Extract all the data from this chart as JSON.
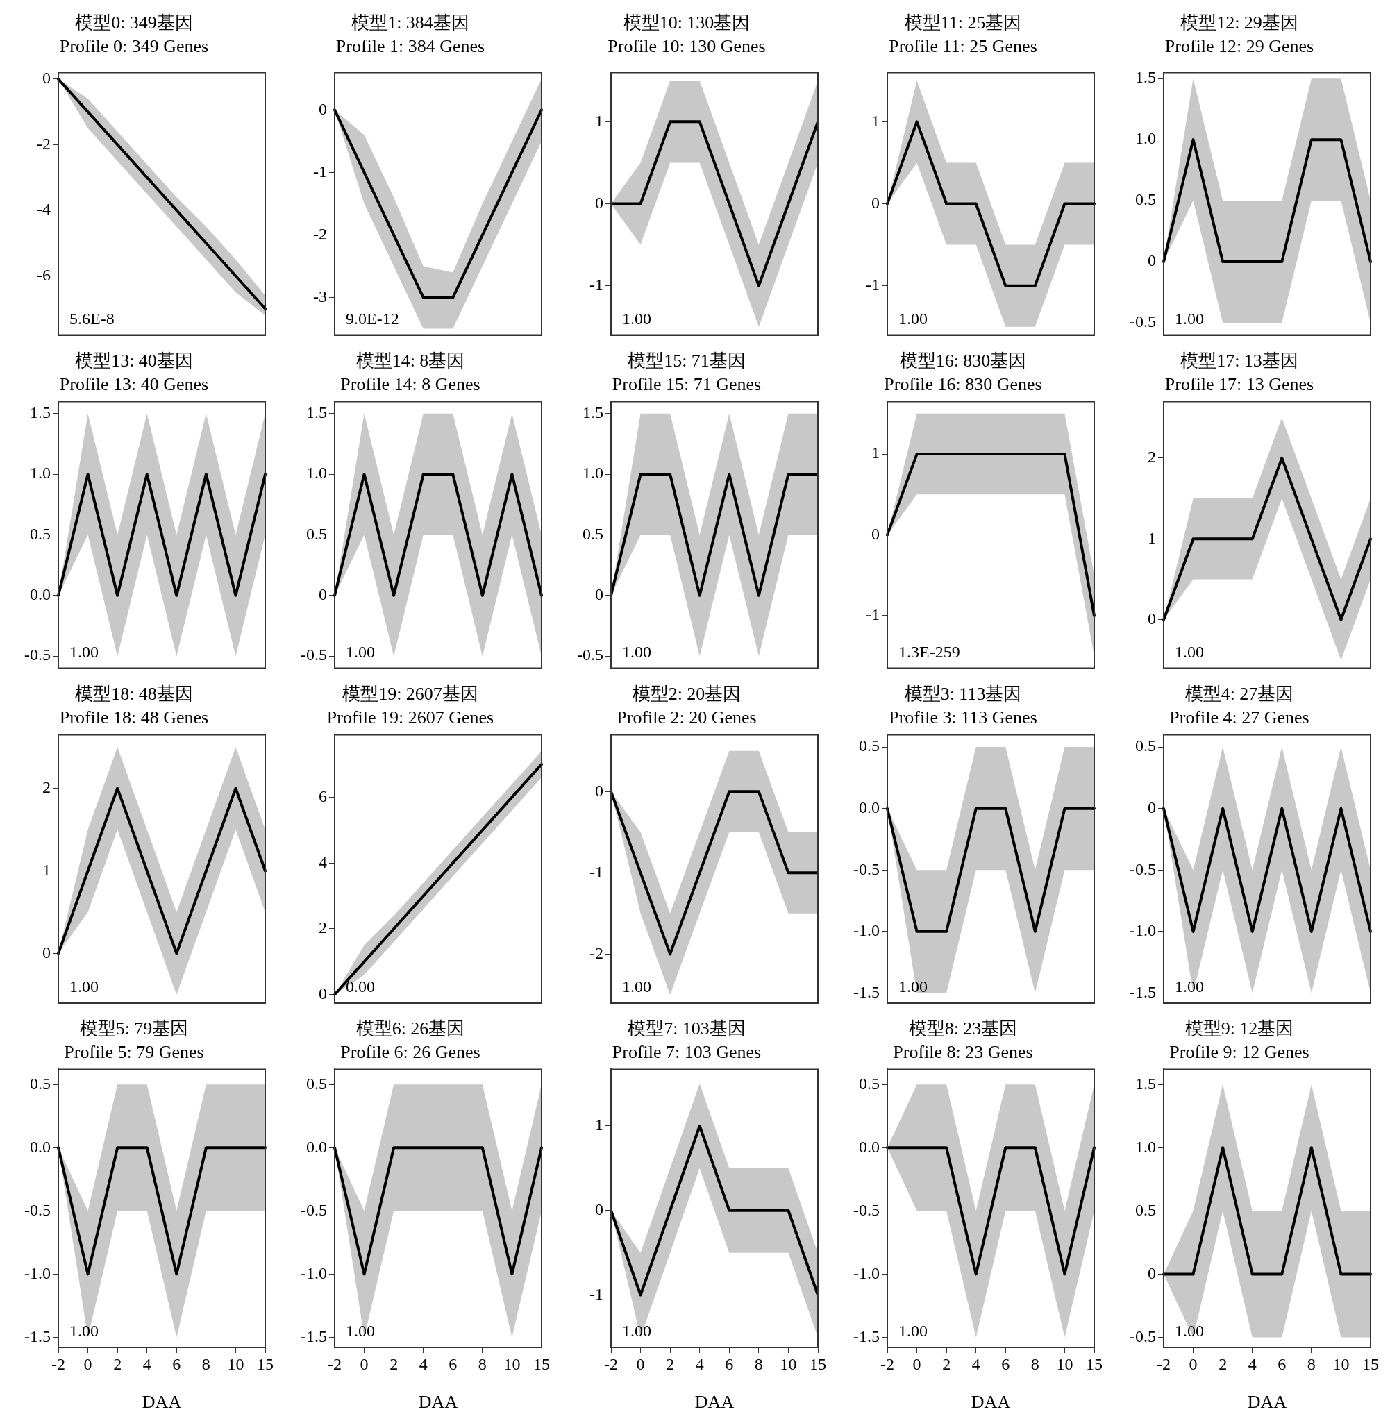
{
  "chart_data": [
    {
      "type": "line",
      "title": "模型0: 349基因",
      "subtitle": "Profile 0: 349 Genes",
      "categories": [
        "-2",
        "0",
        "2",
        "4",
        "6",
        "8",
        "10",
        "15"
      ],
      "series": [
        {
          "color": "#000000",
          "values": [
            0,
            -1,
            -2,
            -3,
            -4,
            -5,
            -6,
            -7
          ],
          "lower": [
            0,
            -1.5,
            -2.5,
            -3.5,
            -4.5,
            -5.5,
            -6.5,
            -7.2
          ],
          "upper": [
            0,
            -0.6,
            -1.6,
            -2.6,
            -3.6,
            -4.5,
            -5.5,
            -6.6
          ]
        }
      ],
      "ylim": [
        -7.8,
        0.2
      ],
      "yticks": [
        -6,
        -4,
        -2,
        0
      ],
      "tick_labels": "y",
      "marker": "none",
      "line_style": "solid",
      "legend": false,
      "annotations": [
        "5.6E-8"
      ]
    },
    {
      "type": "line",
      "title": "模型1: 384基因",
      "subtitle": "Profile 1: 384 Genes",
      "categories": [
        "-2",
        "0",
        "2",
        "4",
        "6",
        "8",
        "10",
        "15"
      ],
      "series": [
        {
          "color": "#000000",
          "values": [
            0,
            -1,
            -2,
            -3,
            -3,
            -2,
            -1,
            0
          ],
          "lower": [
            0,
            -1.5,
            -2.5,
            -3.5,
            -3.5,
            -2.5,
            -1.5,
            -0.5
          ],
          "upper": [
            0,
            -0.4,
            -1.4,
            -2.5,
            -2.6,
            -1.5,
            -0.5,
            0.5
          ]
        }
      ],
      "ylim": [
        -3.6,
        0.6
      ],
      "yticks": [
        -3,
        -2,
        -1,
        0
      ],
      "tick_labels": "y",
      "marker": "none",
      "line_style": "solid",
      "legend": false,
      "annotations": [
        "9.0E-12"
      ]
    },
    {
      "type": "line",
      "title": "模型10: 130基因",
      "subtitle": "Profile 10: 130 Genes",
      "categories": [
        "-2",
        "0",
        "2",
        "4",
        "6",
        "8",
        "10",
        "15"
      ],
      "series": [
        {
          "color": "#000000",
          "values": [
            0,
            0,
            1,
            1,
            0,
            -1,
            0,
            1
          ],
          "lower": [
            0,
            -0.5,
            0.5,
            0.5,
            -0.5,
            -1.5,
            -0.5,
            0.5
          ],
          "upper": [
            0,
            0.5,
            1.5,
            1.5,
            0.5,
            -0.5,
            0.5,
            1.5
          ]
        }
      ],
      "ylim": [
        -1.6,
        1.6
      ],
      "yticks": [
        -1,
        0,
        1
      ],
      "tick_labels": "y",
      "marker": "none",
      "line_style": "solid",
      "legend": false,
      "annotations": [
        "1.00"
      ]
    },
    {
      "type": "line",
      "title": "模型11: 25基因",
      "subtitle": "Profile 11: 25 Genes",
      "categories": [
        "-2",
        "0",
        "2",
        "4",
        "6",
        "8",
        "10",
        "15"
      ],
      "series": [
        {
          "color": "#000000",
          "values": [
            0,
            1,
            0,
            0,
            -1,
            -1,
            0,
            0
          ],
          "lower": [
            0,
            0.5,
            -0.5,
            -0.5,
            -1.5,
            -1.5,
            -0.5,
            -0.5
          ],
          "upper": [
            0,
            1.5,
            0.5,
            0.5,
            -0.5,
            -0.5,
            0.5,
            0.5
          ]
        }
      ],
      "ylim": [
        -1.6,
        1.6
      ],
      "yticks": [
        -1,
        0,
        1
      ],
      "tick_labels": "y",
      "marker": "none",
      "line_style": "solid",
      "legend": false,
      "annotations": [
        "1.00"
      ]
    },
    {
      "type": "line",
      "title": "模型12: 29基因",
      "subtitle": "Profile 12: 29 Genes",
      "categories": [
        "-2",
        "0",
        "2",
        "4",
        "6",
        "8",
        "10",
        "15"
      ],
      "series": [
        {
          "color": "#000000",
          "values": [
            0,
            1,
            0,
            0,
            0,
            1,
            1,
            0
          ],
          "lower": [
            0,
            0.5,
            -0.5,
            -0.5,
            -0.5,
            0.5,
            0.5,
            -0.5
          ],
          "upper": [
            0,
            1.5,
            0.5,
            0.5,
            0.5,
            1.5,
            1.5,
            0.5
          ]
        }
      ],
      "ylim": [
        -0.6,
        1.55
      ],
      "yticks": [
        -0.5,
        0,
        0.5,
        {
          "value": 1,
          "label": "1.0"
        },
        1.5
      ],
      "tick_labels": "y",
      "marker": "none",
      "line_style": "solid",
      "legend": false,
      "annotations": [
        "1.00"
      ]
    },
    {
      "type": "line",
      "title": "模型13: 40基因",
      "subtitle": "Profile 13: 40 Genes",
      "categories": [
        "-2",
        "0",
        "2",
        "4",
        "6",
        "8",
        "10",
        "15"
      ],
      "series": [
        {
          "color": "#000000",
          "values": [
            0,
            1,
            0,
            1,
            0,
            1,
            0,
            1
          ],
          "lower": [
            0,
            0.5,
            -0.5,
            0.5,
            -0.5,
            0.5,
            -0.5,
            0.5
          ],
          "upper": [
            0,
            1.5,
            0.5,
            1.5,
            0.5,
            1.5,
            0.5,
            1.5
          ]
        }
      ],
      "ylim": [
        -0.6,
        1.6
      ],
      "yticks": [
        -0.5,
        {
          "value": 0,
          "label": "0.0"
        },
        0.5,
        {
          "value": 1,
          "label": "1.0"
        },
        1.5
      ],
      "tick_labels": "y",
      "marker": "none",
      "line_style": "solid",
      "legend": false,
      "annotations": [
        "1.00"
      ]
    },
    {
      "type": "line",
      "title": "模型14: 8基因",
      "subtitle": "Profile 14: 8 Genes",
      "categories": [
        "-2",
        "0",
        "2",
        "4",
        "6",
        "8",
        "10",
        "15"
      ],
      "series": [
        {
          "color": "#000000",
          "values": [
            0,
            1,
            0,
            1,
            1,
            0,
            1,
            0
          ],
          "lower": [
            0,
            0.5,
            -0.5,
            0.5,
            0.5,
            -0.5,
            0.5,
            -0.5
          ],
          "upper": [
            0,
            1.5,
            0.5,
            1.5,
            1.5,
            0.5,
            1.5,
            0.5
          ]
        }
      ],
      "ylim": [
        -0.6,
        1.6
      ],
      "yticks": [
        -0.5,
        0,
        0.5,
        {
          "value": 1,
          "label": "1.0"
        },
        1.5
      ],
      "tick_labels": "y",
      "marker": "none",
      "line_style": "solid",
      "legend": false,
      "annotations": [
        "1.00"
      ]
    },
    {
      "type": "line",
      "title": "模型15: 71基因",
      "subtitle": "Profile 15: 71 Genes",
      "categories": [
        "-2",
        "0",
        "2",
        "4",
        "6",
        "8",
        "10",
        "15"
      ],
      "series": [
        {
          "color": "#000000",
          "values": [
            0,
            1,
            1,
            0,
            1,
            0,
            1,
            1
          ],
          "lower": [
            0,
            0.5,
            0.5,
            -0.5,
            0.5,
            -0.5,
            0.5,
            0.5
          ],
          "upper": [
            0,
            1.5,
            1.5,
            0.5,
            1.5,
            0.5,
            1.5,
            1.5
          ]
        }
      ],
      "ylim": [
        -0.6,
        1.6
      ],
      "yticks": [
        -0.5,
        0,
        0.5,
        {
          "value": 1,
          "label": "1.0"
        },
        1.5
      ],
      "tick_labels": "y",
      "marker": "none",
      "line_style": "solid",
      "legend": false,
      "annotations": [
        "1.00"
      ]
    },
    {
      "type": "line",
      "title": "模型16: 830基因",
      "subtitle": "Profile 16: 830 Genes",
      "categories": [
        "-2",
        "0",
        "2",
        "4",
        "6",
        "8",
        "10",
        "15"
      ],
      "series": [
        {
          "color": "#000000",
          "values": [
            0,
            1,
            1,
            1,
            1,
            1,
            1,
            -1
          ],
          "lower": [
            0,
            0.5,
            0.5,
            0.5,
            0.5,
            0.5,
            0.5,
            -1.5
          ],
          "upper": [
            0,
            1.5,
            1.5,
            1.5,
            1.5,
            1.5,
            1.5,
            -0.5
          ]
        }
      ],
      "ylim": [
        -1.65,
        1.65
      ],
      "yticks": [
        -1,
        0,
        1
      ],
      "tick_labels": "y",
      "marker": "none",
      "line_style": "solid",
      "legend": false,
      "annotations": [
        "1.3E-259"
      ]
    },
    {
      "type": "line",
      "title": "模型17: 13基因",
      "subtitle": "Profile 17: 13 Genes",
      "categories": [
        "-2",
        "0",
        "2",
        "4",
        "6",
        "8",
        "10",
        "15"
      ],
      "series": [
        {
          "color": "#000000",
          "values": [
            0,
            1,
            1,
            1,
            2,
            1,
            0,
            1
          ],
          "lower": [
            0,
            0.5,
            0.5,
            0.5,
            1.5,
            0.5,
            -0.5,
            0.5
          ],
          "upper": [
            0,
            1.5,
            1.5,
            1.5,
            2.5,
            1.5,
            0.5,
            1.5
          ]
        }
      ],
      "ylim": [
        -0.6,
        2.7
      ],
      "yticks": [
        0,
        1,
        2
      ],
      "tick_labels": "y",
      "marker": "none",
      "line_style": "solid",
      "legend": false,
      "annotations": [
        "1.00"
      ]
    },
    {
      "type": "line",
      "title": "模型18: 48基因",
      "subtitle": "Profile 18: 48 Genes",
      "categories": [
        "-2",
        "0",
        "2",
        "4",
        "6",
        "8",
        "10",
        "15"
      ],
      "series": [
        {
          "color": "#000000",
          "values": [
            0,
            1,
            2,
            1,
            0,
            1,
            2,
            1
          ],
          "lower": [
            0,
            0.5,
            1.5,
            0.5,
            -0.5,
            0.5,
            1.5,
            0.5
          ],
          "upper": [
            0,
            1.5,
            2.5,
            1.5,
            0.5,
            1.5,
            2.5,
            1.5
          ]
        }
      ],
      "ylim": [
        -0.6,
        2.65
      ],
      "yticks": [
        0,
        1,
        2
      ],
      "tick_labels": "y",
      "marker": "none",
      "line_style": "solid",
      "legend": false,
      "annotations": [
        "1.00"
      ]
    },
    {
      "type": "line",
      "title": "模型19: 2607基因",
      "subtitle": "Profile 19: 2607 Genes",
      "categories": [
        "-2",
        "0",
        "2",
        "4",
        "6",
        "8",
        "10",
        "15"
      ],
      "series": [
        {
          "color": "#000000",
          "values": [
            0,
            1,
            2,
            3,
            4,
            5,
            6,
            7
          ],
          "lower": [
            0,
            0.6,
            1.6,
            2.6,
            3.6,
            4.6,
            5.6,
            6.6
          ],
          "upper": [
            0,
            1.5,
            2.4,
            3.4,
            4.4,
            5.4,
            6.4,
            7.4
          ]
        }
      ],
      "ylim": [
        -0.25,
        7.9
      ],
      "yticks": [
        0,
        2,
        4,
        6
      ],
      "tick_labels": "y",
      "marker": "none",
      "line_style": "solid",
      "legend": false,
      "annotations": [
        "0.00"
      ]
    },
    {
      "type": "line",
      "title": "模型2: 20基因",
      "subtitle": "Profile 2: 20 Genes",
      "categories": [
        "-2",
        "0",
        "2",
        "4",
        "6",
        "8",
        "10",
        "15"
      ],
      "series": [
        {
          "color": "#000000",
          "values": [
            0,
            -1,
            -2,
            -1,
            0,
            0,
            -1,
            -1
          ],
          "lower": [
            0,
            -1.5,
            -2.5,
            -1.5,
            -0.5,
            -0.5,
            -1.5,
            -1.5
          ],
          "upper": [
            0,
            -0.5,
            -1.5,
            -0.5,
            0.5,
            0.5,
            -0.5,
            -0.5
          ]
        }
      ],
      "ylim": [
        -2.6,
        0.7
      ],
      "yticks": [
        -2,
        -1,
        0
      ],
      "tick_labels": "y",
      "marker": "none",
      "line_style": "solid",
      "legend": false,
      "annotations": [
        "1.00"
      ]
    },
    {
      "type": "line",
      "title": "模型3: 113基因",
      "subtitle": "Profile 3: 113 Genes",
      "categories": [
        "-2",
        "0",
        "2",
        "4",
        "6",
        "8",
        "10",
        "15"
      ],
      "series": [
        {
          "color": "#000000",
          "values": [
            0,
            -1,
            -1,
            0,
            0,
            -1,
            0,
            0
          ],
          "lower": [
            0,
            -1.5,
            -1.5,
            -0.5,
            -0.5,
            -1.5,
            -0.5,
            -0.5
          ],
          "upper": [
            0,
            -0.5,
            -0.5,
            0.5,
            0.5,
            -0.5,
            0.5,
            0.5
          ]
        }
      ],
      "ylim": [
        -1.58,
        0.6
      ],
      "yticks": [
        -1.5,
        {
          "value": -1,
          "label": "-1.0"
        },
        -0.5,
        {
          "value": 0,
          "label": "0.0"
        },
        0.5
      ],
      "tick_labels": "y",
      "marker": "none",
      "line_style": "solid",
      "legend": false,
      "annotations": [
        "1.00"
      ]
    },
    {
      "type": "line",
      "title": "模型4: 27基因",
      "subtitle": "Profile 4: 27 Genes",
      "categories": [
        "-2",
        "0",
        "2",
        "4",
        "6",
        "8",
        "10",
        "15"
      ],
      "series": [
        {
          "color": "#000000",
          "values": [
            0,
            -1,
            0,
            -1,
            0,
            -1,
            0,
            -1
          ],
          "lower": [
            0,
            -1.5,
            -0.5,
            -1.5,
            -0.5,
            -1.5,
            -0.5,
            -1.5
          ],
          "upper": [
            0,
            -0.5,
            0.5,
            -0.5,
            0.5,
            -0.5,
            0.5,
            -0.5
          ]
        }
      ],
      "ylim": [
        -1.58,
        0.6
      ],
      "yticks": [
        -1.5,
        {
          "value": -1,
          "label": "-1.0"
        },
        -0.5,
        0,
        0.5
      ],
      "tick_labels": "y",
      "marker": "none",
      "line_style": "solid",
      "legend": false,
      "annotations": [
        "1.00"
      ]
    },
    {
      "type": "line",
      "title": "模型5: 79基因",
      "subtitle": "Profile 5: 79 Genes",
      "xlabel": "DAA",
      "categories": [
        "-2",
        "0",
        "2",
        "4",
        "6",
        "8",
        "10",
        "15"
      ],
      "series": [
        {
          "color": "#000000",
          "values": [
            0,
            -1,
            0,
            0,
            -1,
            0,
            0,
            0
          ],
          "lower": [
            0,
            -1.5,
            -0.5,
            -0.5,
            -1.5,
            -0.5,
            -0.5,
            -0.5
          ],
          "upper": [
            0,
            -0.5,
            0.5,
            0.5,
            -0.5,
            0.5,
            0.5,
            0.5
          ]
        }
      ],
      "ylim": [
        -1.58,
        0.62
      ],
      "yticks": [
        -1.5,
        {
          "value": -1,
          "label": "-1.0"
        },
        -0.5,
        {
          "value": 0,
          "label": "0.0"
        },
        0.5
      ],
      "marker": "none",
      "line_style": "solid",
      "legend": false,
      "annotations": [
        "1.00"
      ]
    },
    {
      "type": "line",
      "title": "模型6: 26基因",
      "subtitle": "Profile 6: 26 Genes",
      "xlabel": "DAA",
      "categories": [
        "-2",
        "0",
        "2",
        "4",
        "6",
        "8",
        "10",
        "15"
      ],
      "series": [
        {
          "color": "#000000",
          "values": [
            0,
            -1,
            0,
            0,
            0,
            0,
            -1,
            0
          ],
          "lower": [
            0,
            -1.5,
            -0.5,
            -0.5,
            -0.5,
            -0.5,
            -1.5,
            -0.5
          ],
          "upper": [
            0,
            -0.5,
            0.5,
            0.5,
            0.5,
            0.5,
            -0.5,
            0.5
          ]
        }
      ],
      "ylim": [
        -1.58,
        0.62
      ],
      "yticks": [
        -1.5,
        {
          "value": -1,
          "label": "-1.0"
        },
        -0.5,
        {
          "value": 0,
          "label": "0.0"
        },
        0.5
      ],
      "marker": "none",
      "line_style": "solid",
      "legend": false,
      "annotations": [
        "1.00"
      ]
    },
    {
      "type": "line",
      "title": "模型7: 103基因",
      "subtitle": "Profile 7: 103 Genes",
      "xlabel": "DAA",
      "categories": [
        "-2",
        "0",
        "2",
        "4",
        "6",
        "8",
        "10",
        "15"
      ],
      "series": [
        {
          "color": "#000000",
          "values": [
            0,
            -1,
            0,
            1,
            0,
            0,
            0,
            -1
          ],
          "lower": [
            0,
            -1.5,
            -0.5,
            0.5,
            -0.5,
            -0.5,
            -0.5,
            -1.5
          ],
          "upper": [
            0,
            -0.5,
            0.5,
            1.5,
            0.5,
            0.5,
            0.5,
            -0.5
          ]
        }
      ],
      "ylim": [
        -1.62,
        1.67
      ],
      "yticks": [
        -1,
        0,
        1
      ],
      "marker": "none",
      "line_style": "solid",
      "legend": false,
      "annotations": [
        "1.00"
      ]
    },
    {
      "type": "line",
      "title": "模型8: 23基因",
      "subtitle": "Profile 8: 23 Genes",
      "xlabel": "DAA",
      "categories": [
        "-2",
        "0",
        "2",
        "4",
        "6",
        "8",
        "10",
        "15"
      ],
      "series": [
        {
          "color": "#000000",
          "values": [
            0,
            0,
            0,
            -1,
            0,
            0,
            -1,
            0
          ],
          "lower": [
            0,
            -0.5,
            -0.5,
            -1.5,
            -0.5,
            -0.5,
            -1.5,
            -0.5
          ],
          "upper": [
            0,
            0.5,
            0.5,
            -0.5,
            0.5,
            0.5,
            -0.5,
            0.5
          ]
        }
      ],
      "ylim": [
        -1.58,
        0.62
      ],
      "yticks": [
        -1.5,
        {
          "value": -1,
          "label": "-1.0"
        },
        -0.5,
        {
          "value": 0,
          "label": "0.0"
        },
        0.5
      ],
      "marker": "none",
      "line_style": "solid",
      "legend": false,
      "annotations": [
        "1.00"
      ]
    },
    {
      "type": "line",
      "title": "模型9: 12基因",
      "subtitle": "Profile 9: 12 Genes",
      "xlabel": "DAA",
      "categories": [
        "-2",
        "0",
        "2",
        "4",
        "6",
        "8",
        "10",
        "15"
      ],
      "series": [
        {
          "color": "#000000",
          "values": [
            0,
            0,
            1,
            0,
            0,
            1,
            0,
            0
          ],
          "lower": [
            0,
            -0.5,
            0.5,
            -0.5,
            -0.5,
            0.5,
            -0.5,
            -0.5
          ],
          "upper": [
            0,
            0.5,
            1.5,
            0.5,
            0.5,
            1.5,
            0.5,
            0.5
          ]
        }
      ],
      "ylim": [
        -0.58,
        1.62
      ],
      "yticks": [
        -0.5,
        0,
        0.5,
        {
          "value": 1,
          "label": "1.0"
        },
        1.5
      ],
      "marker": "none",
      "line_style": "solid",
      "legend": false,
      "annotations": [
        "1.00"
      ]
    }
  ]
}
